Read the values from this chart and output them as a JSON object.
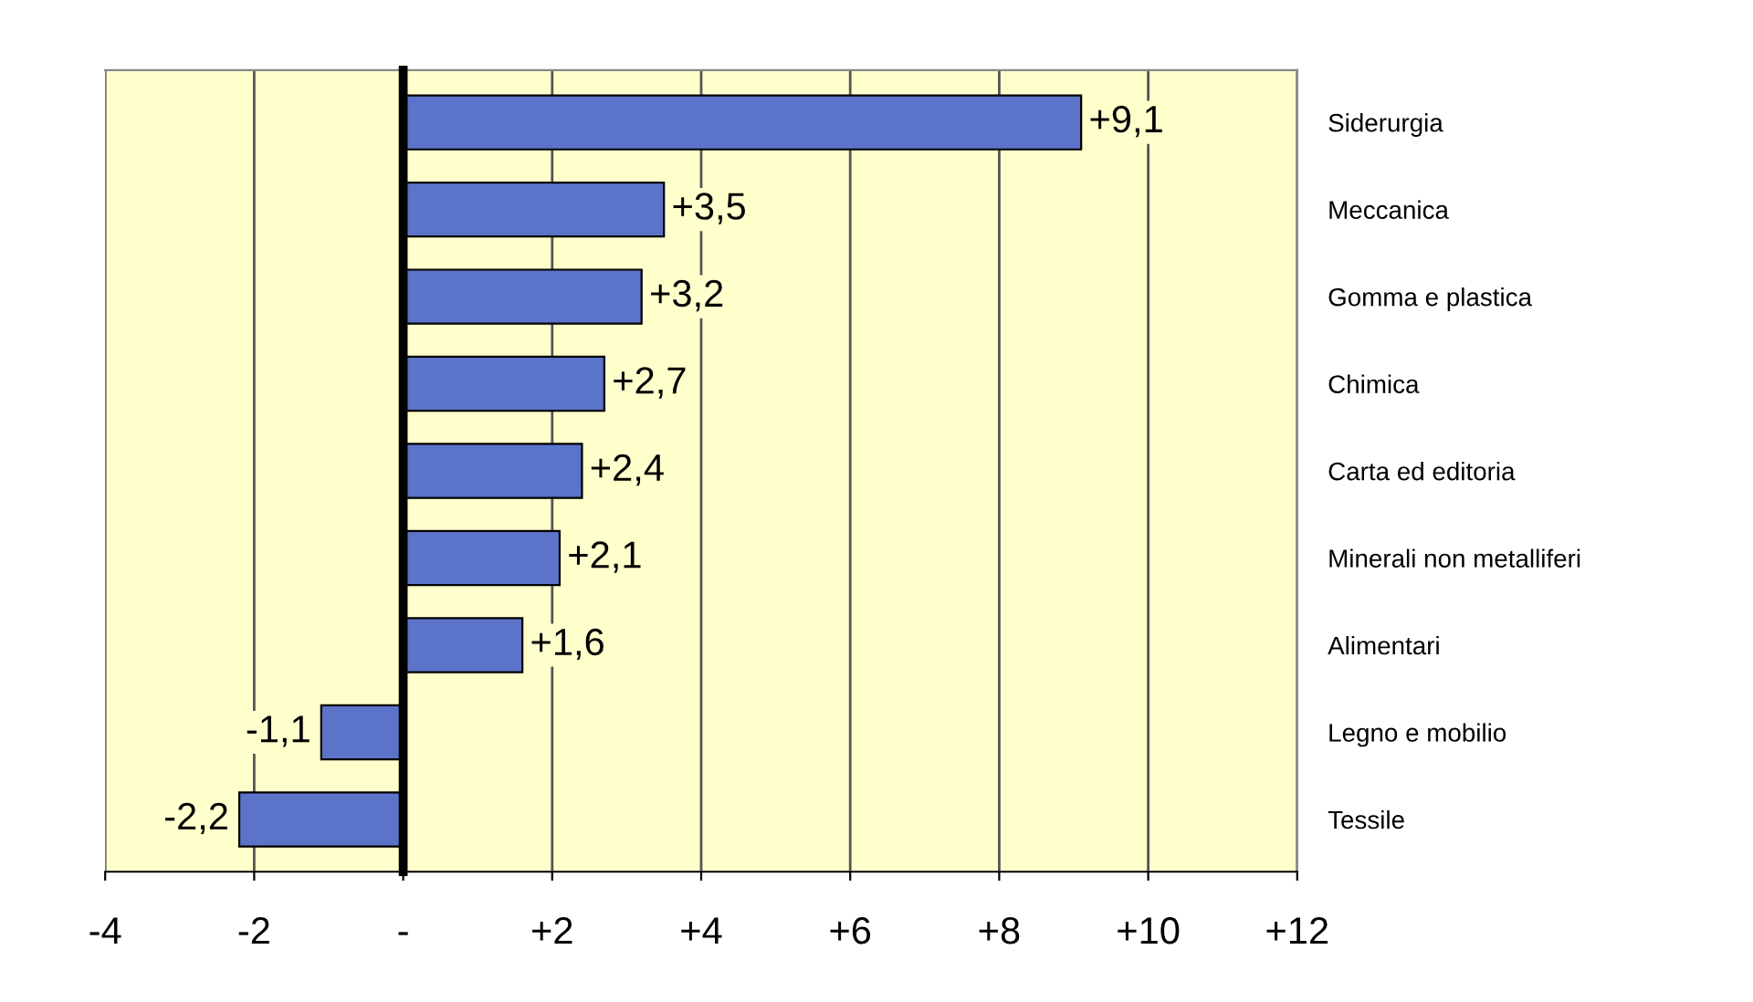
{
  "chart_data": {
    "type": "bar",
    "orientation": "horizontal",
    "categories": [
      "Siderurgia",
      "Meccanica",
      "Gomma e plastica",
      "Chimica",
      "Carta ed editoria",
      "Minerali non metalliferi",
      "Alimentari",
      "Legno e mobilio",
      "Tessile"
    ],
    "values": [
      9.1,
      3.5,
      3.2,
      2.7,
      2.4,
      2.1,
      1.6,
      -1.1,
      -2.2
    ],
    "value_labels": [
      "+9,1",
      "+3,5",
      "+3,2",
      "+2,7",
      "+2,4",
      "+2,1",
      "+1,6",
      "-1,1",
      "-2,2"
    ],
    "color": "#5b73c8",
    "xlim": [
      -4,
      12
    ],
    "xticks": [
      {
        "value": -4,
        "label": "-4"
      },
      {
        "value": -2,
        "label": "-2"
      },
      {
        "value": 0,
        "label": "-"
      },
      {
        "value": 2,
        "label": "+2"
      },
      {
        "value": 4,
        "label": "+4"
      },
      {
        "value": 6,
        "label": "+6"
      },
      {
        "value": 8,
        "label": "+8"
      },
      {
        "value": 10,
        "label": "+10"
      },
      {
        "value": 12,
        "label": "+12"
      }
    ],
    "grid": "x"
  }
}
